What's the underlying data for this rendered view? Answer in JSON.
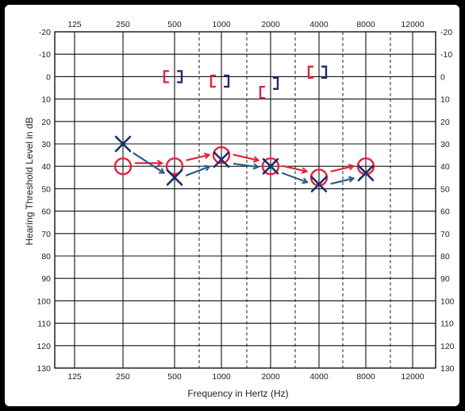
{
  "chart_data": {
    "type": "audiogram",
    "title": "",
    "xlabel": "Frequency in Hertz (Hz)",
    "ylabel": "Hearing Threshold Level in dB",
    "x_ticks": [
      "125",
      "250",
      "500",
      "1000",
      "2000",
      "4000",
      "8000",
      "12000"
    ],
    "y_ticks": [
      "-20",
      "-10",
      "0",
      "10",
      "20",
      "30",
      "40",
      "50",
      "60",
      "70",
      "80",
      "90",
      "100",
      "110",
      "120",
      "130"
    ],
    "ylim": [
      -20,
      130
    ],
    "y_inverted": true,
    "grid": true,
    "colors": {
      "right": "#e5223a",
      "left": "#1c2c6e",
      "connector_right": "#e5223a",
      "connector_left": "#2a5f86"
    },
    "series": [
      {
        "name": "",
        "ear": "right",
        "symbol": "circle",
        "color": "#e5223a",
        "points": [
          {
            "x": "250",
            "y": 40
          },
          {
            "x": "500",
            "y": 40
          },
          {
            "x": "1000",
            "y": 35
          },
          {
            "x": "2000",
            "y": 40
          },
          {
            "x": "4000",
            "y": 45
          },
          {
            "x": "8000",
            "y": 40
          }
        ]
      },
      {
        "name": "",
        "ear": "left",
        "symbol": "x",
        "color": "#1c2c6e",
        "points": [
          {
            "x": "250",
            "y": 30
          },
          {
            "x": "500",
            "y": 45
          },
          {
            "x": "1000",
            "y": 37
          },
          {
            "x": "2000",
            "y": 40
          },
          {
            "x": "4000",
            "y": 48
          },
          {
            "x": "8000",
            "y": 43
          }
        ]
      },
      {
        "name": "",
        "ear": "right",
        "symbol": "bracket-open",
        "color": "#e5223a",
        "points": [
          {
            "x": "500",
            "y": 0
          },
          {
            "x": "1000",
            "y": 2
          },
          {
            "x": "2000",
            "y": 7
          },
          {
            "x": "4000",
            "y": -2
          }
        ]
      },
      {
        "name": "",
        "ear": "left",
        "symbol": "bracket-close",
        "color": "#1c2c6e",
        "points": [
          {
            "x": "500",
            "y": 0
          },
          {
            "x": "1000",
            "y": 2
          },
          {
            "x": "2000",
            "y": 3
          },
          {
            "x": "4000",
            "y": -2
          }
        ]
      }
    ]
  }
}
